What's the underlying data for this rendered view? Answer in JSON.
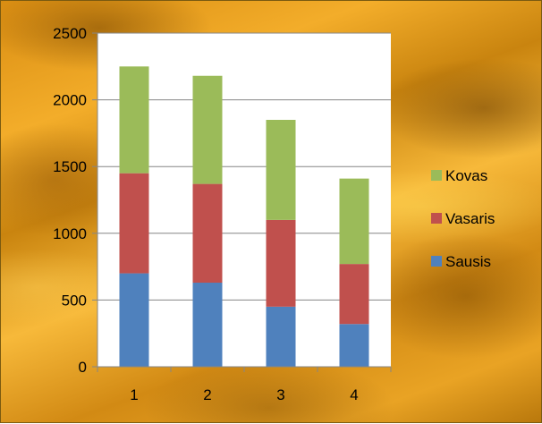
{
  "chart_data": {
    "type": "bar",
    "stacked": true,
    "categories": [
      "1",
      "2",
      "3",
      "4"
    ],
    "series": [
      {
        "name": "Sausis",
        "color": "#4f81bd",
        "values": [
          700,
          630,
          450,
          320
        ]
      },
      {
        "name": "Vasaris",
        "color": "#c0504d",
        "values": [
          750,
          740,
          650,
          450
        ]
      },
      {
        "name": "Kovas",
        "color": "#9bbb59",
        "values": [
          800,
          810,
          750,
          640
        ]
      }
    ],
    "ylim": [
      0,
      2500
    ],
    "yticks": [
      0,
      500,
      1000,
      1500,
      2000,
      2500
    ],
    "grid": true,
    "legend": {
      "position": "right",
      "order": [
        "Kovas",
        "Vasaris",
        "Sausis"
      ]
    },
    "title": "",
    "xlabel": "",
    "ylabel": ""
  }
}
